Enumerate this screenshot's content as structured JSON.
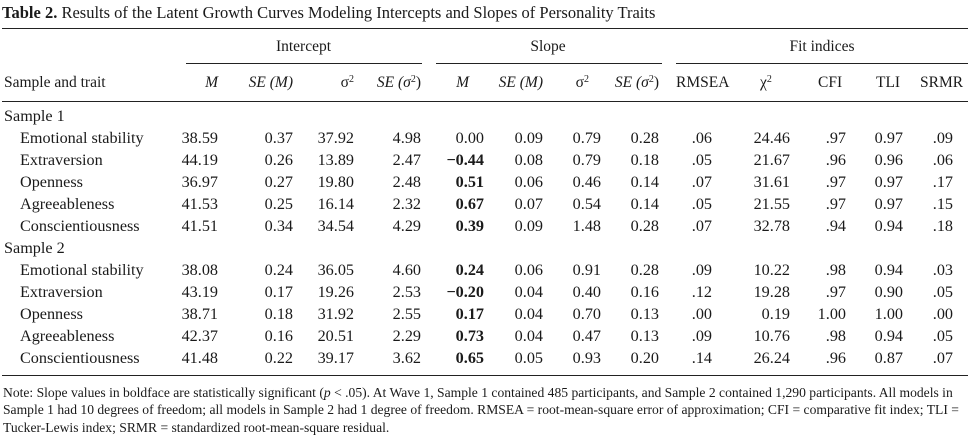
{
  "title": {
    "label": "Table 2.",
    "text": "Results of the Latent Growth Curves Modeling Intercepts and Slopes of Personality Traits"
  },
  "groups": [
    "Intercept",
    "Slope",
    "Fit indices"
  ],
  "columns": {
    "sample_trait": "Sample and trait",
    "m": "M",
    "se_m": "SE (M)",
    "sigma": "σ",
    "sup2": "2",
    "se_sigma_pre": "SE (σ",
    "se_sigma_post": ")",
    "rmsea": "RMSEA",
    "chi": "χ",
    "cfi": "CFI",
    "tli": "TLI",
    "srmr": "SRMR"
  },
  "samples": [
    {
      "name": "Sample 1",
      "rows": [
        {
          "trait": "Emotional stability",
          "values": [
            "38.59",
            "0.37",
            "37.92",
            "4.98",
            "0.00",
            "0.09",
            "0.79",
            "0.28",
            ".06",
            "24.46",
            ".97",
            "0.97",
            ".09"
          ],
          "slope_bold": false
        },
        {
          "trait": "Extraversion",
          "values": [
            "44.19",
            "0.26",
            "13.89",
            "2.47",
            "−0.44",
            "0.08",
            "0.79",
            "0.18",
            ".05",
            "21.67",
            ".96",
            "0.96",
            ".06"
          ],
          "slope_bold": true
        },
        {
          "trait": "Openness",
          "values": [
            "36.97",
            "0.27",
            "19.80",
            "2.48",
            "0.51",
            "0.06",
            "0.46",
            "0.14",
            ".07",
            "31.61",
            ".97",
            "0.97",
            ".17"
          ],
          "slope_bold": true
        },
        {
          "trait": "Agreeableness",
          "values": [
            "41.53",
            "0.25",
            "16.14",
            "2.32",
            "0.67",
            "0.07",
            "0.54",
            "0.14",
            ".05",
            "21.55",
            ".97",
            "0.97",
            ".15"
          ],
          "slope_bold": true
        },
        {
          "trait": "Conscientiousness",
          "values": [
            "41.51",
            "0.34",
            "34.54",
            "4.29",
            "0.39",
            "0.09",
            "1.48",
            "0.28",
            ".07",
            "32.78",
            ".94",
            "0.94",
            ".18"
          ],
          "slope_bold": true
        }
      ]
    },
    {
      "name": "Sample 2",
      "rows": [
        {
          "trait": "Emotional stability",
          "values": [
            "38.08",
            "0.24",
            "36.05",
            "4.60",
            "0.24",
            "0.06",
            "0.91",
            "0.28",
            ".09",
            "10.22",
            ".98",
            "0.94",
            ".03"
          ],
          "slope_bold": true
        },
        {
          "trait": "Extraversion",
          "values": [
            "43.19",
            "0.17",
            "19.26",
            "2.53",
            "−0.20",
            "0.04",
            "0.40",
            "0.16",
            ".12",
            "19.28",
            ".97",
            "0.90",
            ".05"
          ],
          "slope_bold": true
        },
        {
          "trait": "Openness",
          "values": [
            "38.71",
            "0.18",
            "31.92",
            "2.55",
            "0.17",
            "0.04",
            "0.70",
            "0.13",
            ".00",
            "0.19",
            "1.00",
            "1.00",
            ".00"
          ],
          "slope_bold": true
        },
        {
          "trait": "Agreeableness",
          "values": [
            "42.37",
            "0.16",
            "20.51",
            "2.29",
            "0.73",
            "0.04",
            "0.47",
            "0.13",
            ".09",
            "10.76",
            ".98",
            "0.94",
            ".05"
          ],
          "slope_bold": true
        },
        {
          "trait": "Conscientiousness",
          "values": [
            "41.48",
            "0.22",
            "39.17",
            "3.62",
            "0.65",
            "0.05",
            "0.93",
            "0.20",
            ".14",
            "26.24",
            ".96",
            "0.87",
            ".07"
          ],
          "slope_bold": true
        }
      ]
    }
  ],
  "note": {
    "p1": "Note: Slope values in boldface are statistically significant (",
    "p_it": "p",
    "p2": " < .05). At Wave 1, Sample 1 contained 485 participants, and Sample 2 contained 1,290 participants. All models in Sample 1 had 10 degrees of freedom; all models in Sample 2 had 1 degree of freedom. RMSEA = root-mean-square error of approximation; CFI = comparative fit index; TLI = Tucker-Lewis index; SRMR = standardized root-mean-square residual."
  }
}
